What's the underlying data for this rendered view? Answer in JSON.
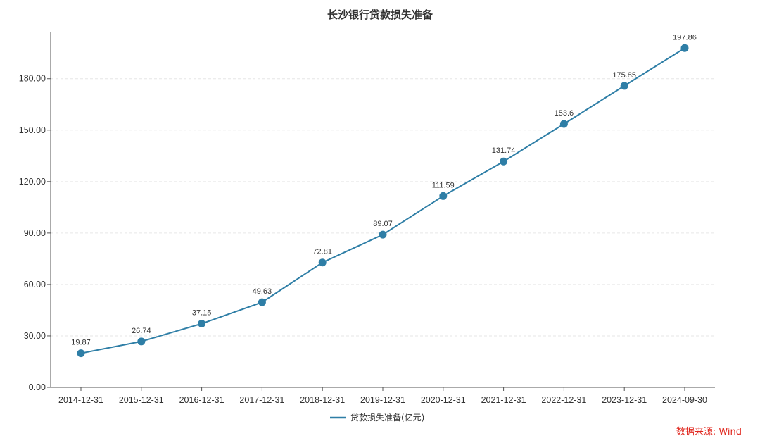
{
  "chart_data": {
    "type": "line",
    "title": "长沙银行贷款损失准备",
    "xlabel": "",
    "ylabel": "",
    "categories": [
      "2014-12-31",
      "2015-12-31",
      "2016-12-31",
      "2017-12-31",
      "2018-12-31",
      "2019-12-31",
      "2020-12-31",
      "2021-12-31",
      "2022-12-31",
      "2023-12-31",
      "2024-09-30"
    ],
    "series": [
      {
        "name": "贷款损失准备(亿元)",
        "values": [
          19.87,
          26.74,
          37.15,
          49.63,
          72.81,
          89.07,
          111.59,
          131.74,
          153.6,
          175.85,
          197.86
        ],
        "labels": [
          "19.87",
          "26.74",
          "37.15",
          "49.63",
          "72.81",
          "89.07",
          "111.59",
          "131.74",
          "153.6",
          "175.85",
          "197.86"
        ],
        "color": "#2e7ea6"
      }
    ],
    "ylim": [
      0,
      207
    ],
    "yticks": [
      0,
      30,
      60,
      90,
      120,
      150,
      180
    ],
    "ytick_labels": [
      "0.00",
      "30.00",
      "60.00",
      "90.00",
      "120.00",
      "150.00",
      "180.00"
    ],
    "grid": "horizontal-dashed",
    "legend_position": "bottom-center"
  },
  "source": "数据来源: Wind",
  "colors": {
    "series": "#2e7ea6",
    "source": "#e0261d",
    "axis": "#555555",
    "grid": "#e6e6e6"
  }
}
